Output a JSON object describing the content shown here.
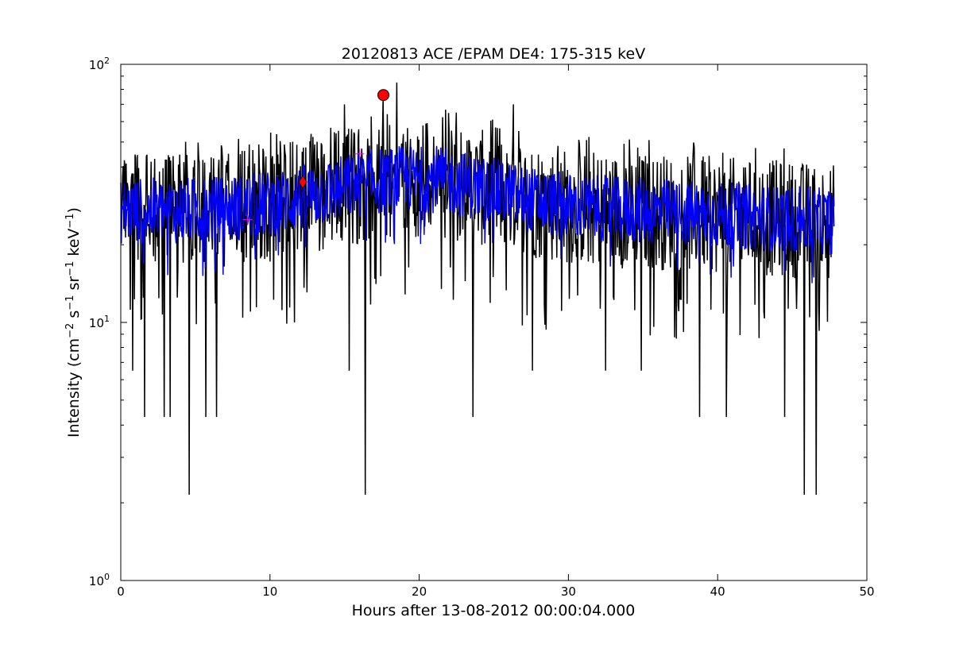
{
  "chart_data": {
    "type": "line",
    "title": "20120813 ACE /EPAM DE4: 175-315 keV",
    "xlabel": "Hours after 13-08-2012 00:00:04.000",
    "ylabel": {
      "parts": [
        {
          "t": "Intensity (cm",
          "sup": false
        },
        {
          "t": "−2",
          "sup": true
        },
        {
          "t": " s",
          "sup": false
        },
        {
          "t": "−1",
          "sup": true
        },
        {
          "t": " sr",
          "sup": false
        },
        {
          "t": "−1",
          "sup": true
        },
        {
          "t": " keV",
          "sup": false
        },
        {
          "t": "−1",
          "sup": true
        },
        {
          "t": ")",
          "sup": false
        }
      ]
    },
    "xlim": [
      0,
      50
    ],
    "ylim": [
      1,
      100
    ],
    "yscale": "log",
    "grid": false,
    "xticks": [
      0,
      10,
      20,
      30,
      40,
      50
    ],
    "yticks": [
      {
        "value": 1,
        "base": "10",
        "exp": "0"
      },
      {
        "value": 10,
        "base": "10",
        "exp": "1"
      },
      {
        "value": 100,
        "base": "10",
        "exp": "2"
      }
    ],
    "colors": {
      "raw": "#000000",
      "smoothed": "#0000ff",
      "markers": "#ff0000",
      "plus_marker": "#ff00ff"
    },
    "series": [
      {
        "role": "raw",
        "x_range": [
          0,
          47.8
        ],
        "samples": 1200,
        "spikes_down": [
          [
            4.6,
            2.15
          ],
          [
            16.4,
            2.15
          ],
          [
            45.8,
            2.15
          ],
          [
            46.6,
            2.15
          ],
          [
            1.6,
            4.3
          ],
          [
            2.9,
            4.3
          ],
          [
            3.3,
            4.3
          ],
          [
            5.7,
            4.3
          ],
          [
            6.4,
            4.3
          ],
          [
            23.6,
            4.3
          ],
          [
            38.8,
            4.3
          ],
          [
            40.6,
            4.3
          ],
          [
            44.5,
            4.3
          ],
          [
            0.8,
            6.5
          ],
          [
            15.3,
            6.5
          ],
          [
            27.6,
            6.5
          ],
          [
            32.5,
            6.5
          ],
          [
            34.9,
            6.5
          ]
        ],
        "spikes_up": [
          [
            18.5,
            85
          ],
          [
            17.6,
            75
          ],
          [
            15.0,
            70
          ],
          [
            22.5,
            65
          ],
          [
            26.3,
            70
          ]
        ]
      },
      {
        "role": "smoothed",
        "x_range": [
          0,
          47.8
        ],
        "samples": 1200
      }
    ],
    "markers": [
      {
        "shape": "circle",
        "x": 17.6,
        "y": 76
      },
      {
        "shape": "diamond",
        "x": 12.2,
        "y": 35
      },
      {
        "shape": "plus",
        "x": 8.5,
        "y": 25
      },
      {
        "shape": "plus",
        "x": 16.0,
        "y": 45
      }
    ]
  }
}
